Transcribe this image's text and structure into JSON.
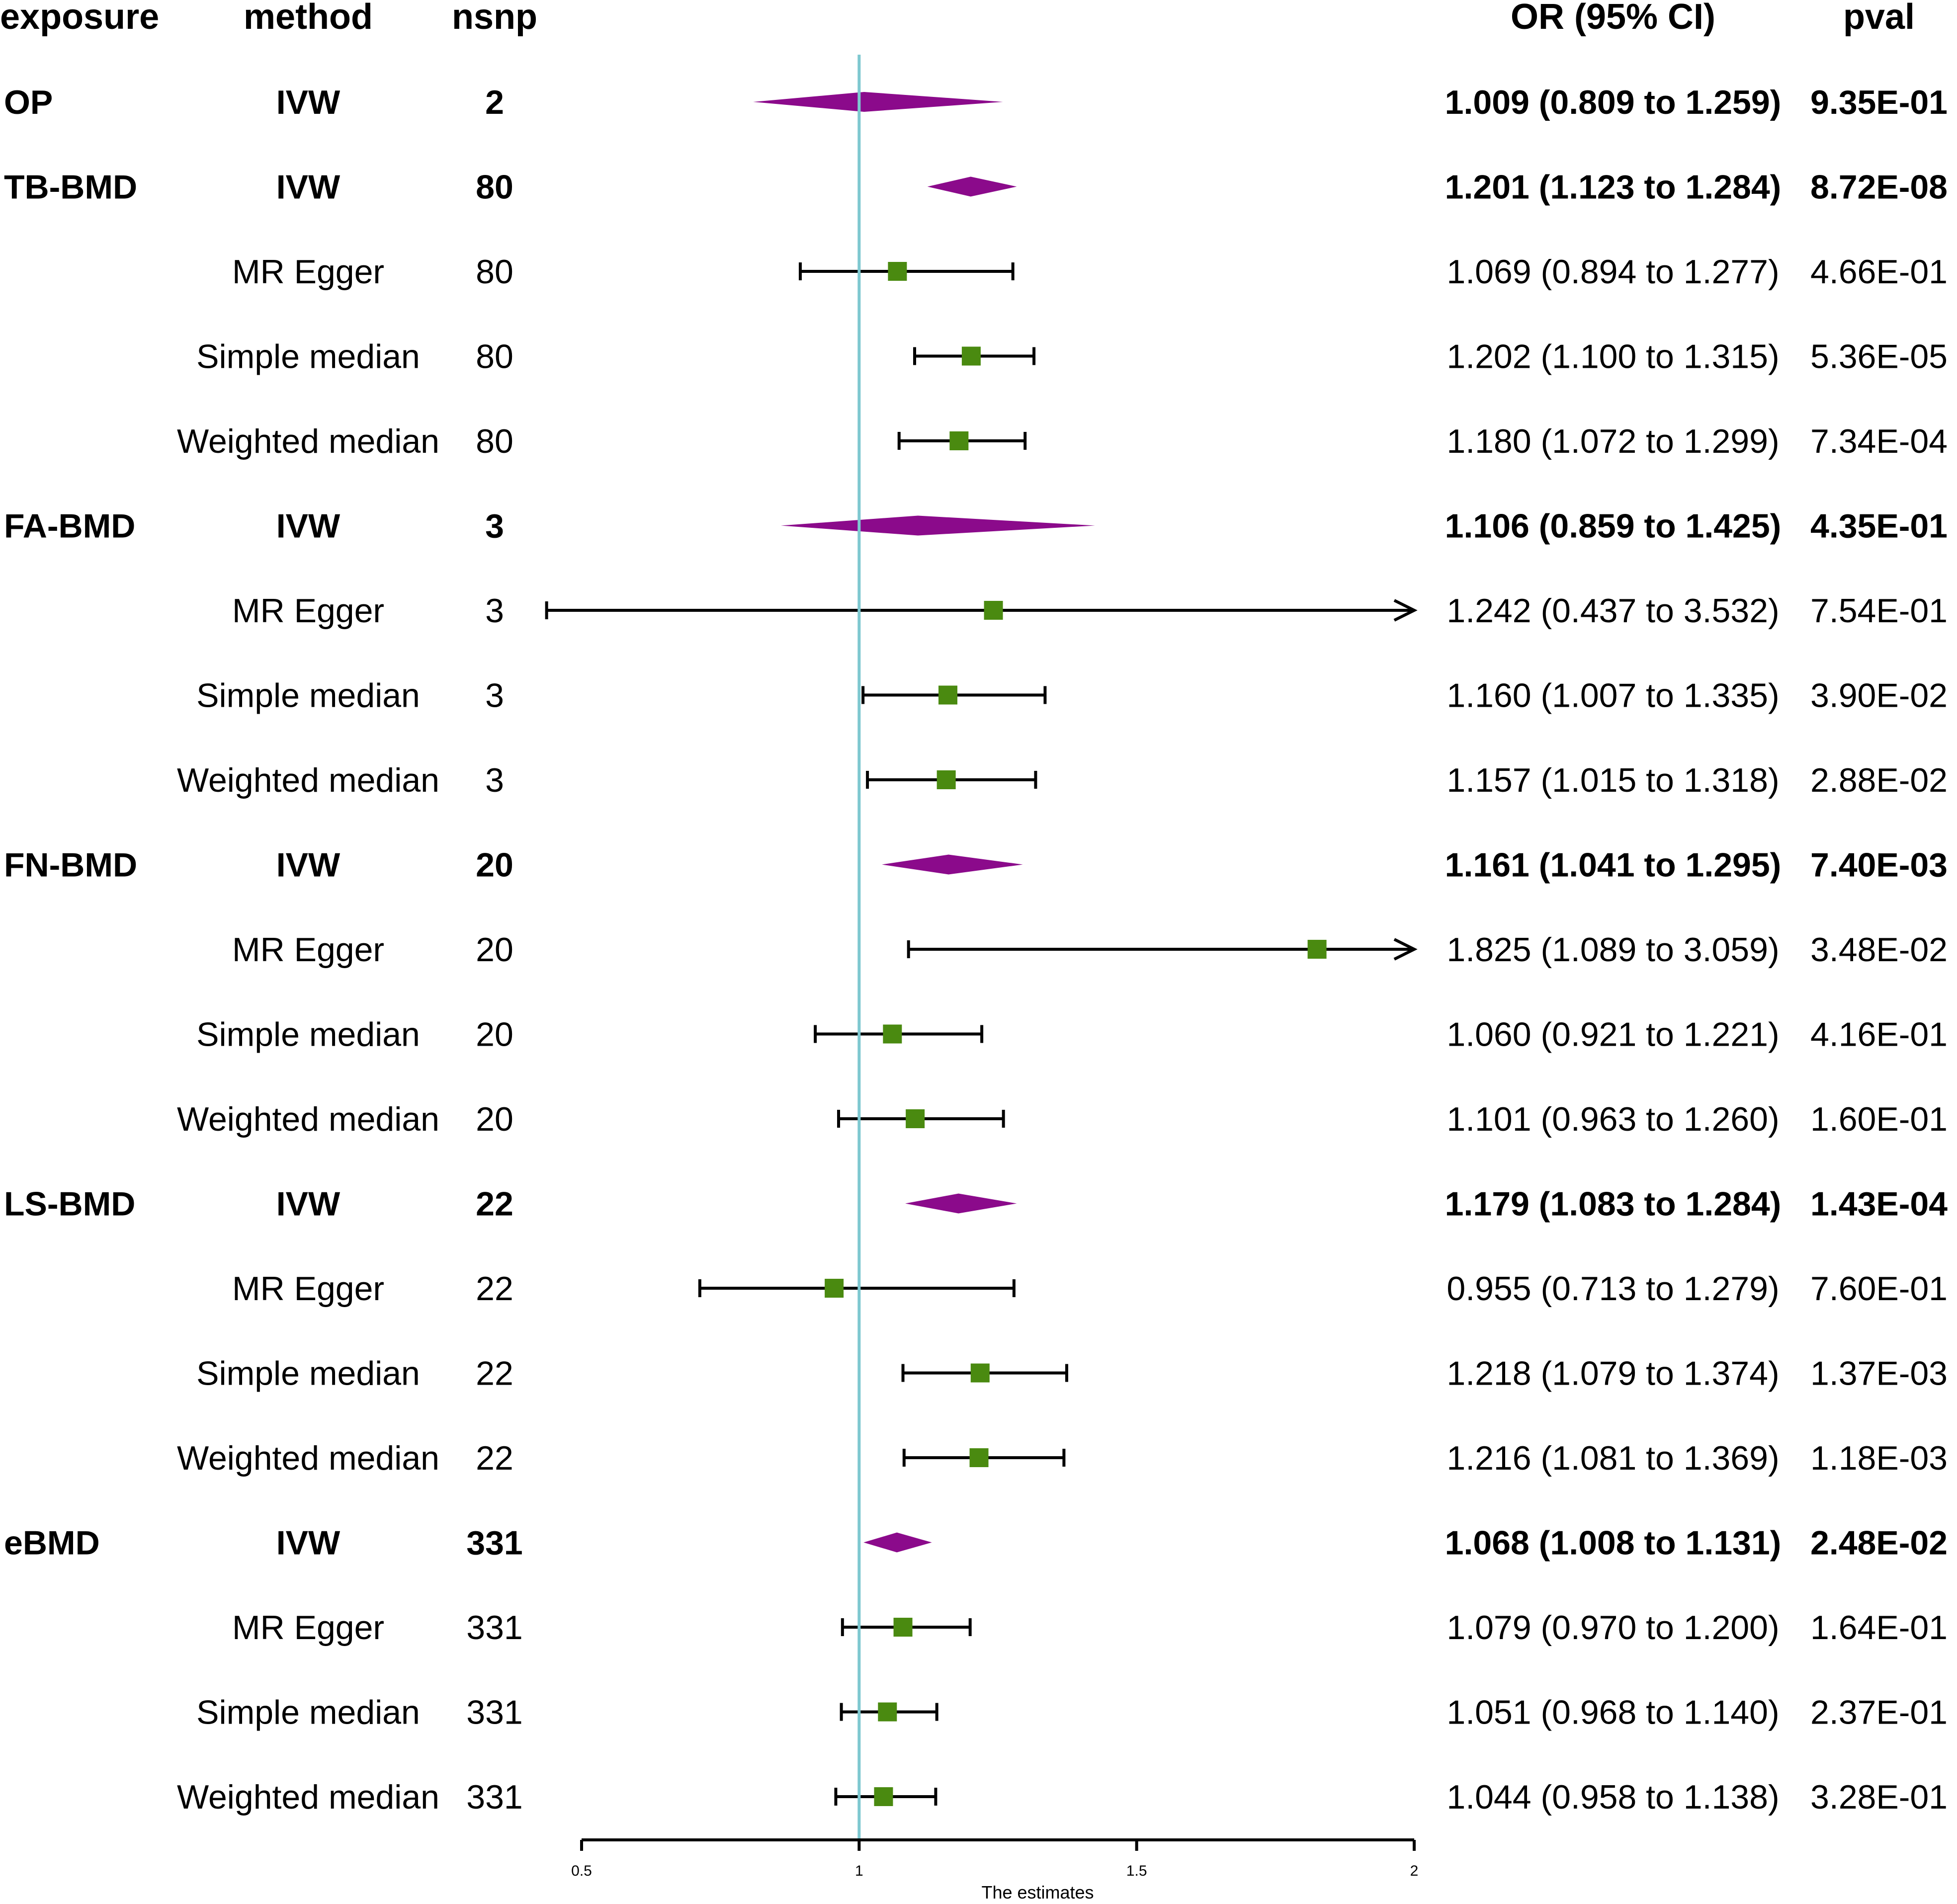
{
  "chart_data": {
    "type": "forest",
    "xlabel": "The estimates",
    "xlim": [
      0.5,
      2
    ],
    "x_ticks": [
      "0.5",
      "1",
      "1.5",
      "2"
    ],
    "reference_line": 1,
    "headers": {
      "exposure": "exposure",
      "method": "method",
      "nsnp": "nsnp",
      "or": "OR (95% CI)",
      "pval": "pval"
    },
    "rows": [
      {
        "exposure": "OP",
        "method": "IVW",
        "nsnp": "2",
        "or": 1.009,
        "lo": 0.809,
        "hi": 1.259,
        "or_text": "1.009 (0.809 to 1.259)",
        "pval": "9.35E-01",
        "summary": true
      },
      {
        "exposure": "TB-BMD",
        "method": "IVW",
        "nsnp": "80",
        "or": 1.201,
        "lo": 1.123,
        "hi": 1.284,
        "or_text": "1.201 (1.123 to 1.284)",
        "pval": "8.72E-08",
        "summary": true
      },
      {
        "exposure": "",
        "method": "MR Egger",
        "nsnp": "80",
        "or": 1.069,
        "lo": 0.894,
        "hi": 1.277,
        "or_text": "1.069 (0.894 to 1.277)",
        "pval": "4.66E-01",
        "summary": false
      },
      {
        "exposure": "",
        "method": "Simple median",
        "nsnp": "80",
        "or": 1.202,
        "lo": 1.1,
        "hi": 1.315,
        "or_text": "1.202 (1.100 to 1.315)",
        "pval": "5.36E-05",
        "summary": false
      },
      {
        "exposure": "",
        "method": "Weighted median",
        "nsnp": "80",
        "or": 1.18,
        "lo": 1.072,
        "hi": 1.299,
        "or_text": "1.180 (1.072 to 1.299)",
        "pval": "7.34E-04",
        "summary": false
      },
      {
        "exposure": "FA-BMD",
        "method": "IVW",
        "nsnp": "3",
        "or": 1.106,
        "lo": 0.859,
        "hi": 1.425,
        "or_text": "1.106 (0.859 to 1.425)",
        "pval": "4.35E-01",
        "summary": true
      },
      {
        "exposure": "",
        "method": "MR Egger",
        "nsnp": "3",
        "or": 1.242,
        "lo": 0.437,
        "hi": 3.532,
        "or_text": "1.242 (0.437 to 3.532)",
        "pval": "7.54E-01",
        "summary": false
      },
      {
        "exposure": "",
        "method": "Simple median",
        "nsnp": "3",
        "or": 1.16,
        "lo": 1.007,
        "hi": 1.335,
        "or_text": "1.160 (1.007 to 1.335)",
        "pval": "3.90E-02",
        "summary": false
      },
      {
        "exposure": "",
        "method": "Weighted median",
        "nsnp": "3",
        "or": 1.157,
        "lo": 1.015,
        "hi": 1.318,
        "or_text": "1.157 (1.015 to 1.318)",
        "pval": "2.88E-02",
        "summary": false
      },
      {
        "exposure": "FN-BMD",
        "method": "IVW",
        "nsnp": "20",
        "or": 1.161,
        "lo": 1.041,
        "hi": 1.295,
        "or_text": "1.161 (1.041 to 1.295)",
        "pval": "7.40E-03",
        "summary": true
      },
      {
        "exposure": "",
        "method": "MR Egger",
        "nsnp": "20",
        "or": 1.825,
        "lo": 1.089,
        "hi": 3.059,
        "or_text": "1.825 (1.089 to 3.059)",
        "pval": "3.48E-02",
        "summary": false
      },
      {
        "exposure": "",
        "method": "Simple median",
        "nsnp": "20",
        "or": 1.06,
        "lo": 0.921,
        "hi": 1.221,
        "or_text": "1.060 (0.921 to 1.221)",
        "pval": "4.16E-01",
        "summary": false
      },
      {
        "exposure": "",
        "method": "Weighted median",
        "nsnp": "20",
        "or": 1.101,
        "lo": 0.963,
        "hi": 1.26,
        "or_text": "1.101 (0.963 to 1.260)",
        "pval": "1.60E-01",
        "summary": false
      },
      {
        "exposure": "LS-BMD",
        "method": "IVW",
        "nsnp": "22",
        "or": 1.179,
        "lo": 1.083,
        "hi": 1.284,
        "or_text": "1.179 (1.083 to 1.284)",
        "pval": "1.43E-04",
        "summary": true
      },
      {
        "exposure": "",
        "method": "MR Egger",
        "nsnp": "22",
        "or": 0.955,
        "lo": 0.713,
        "hi": 1.279,
        "or_text": "0.955 (0.713 to 1.279)",
        "pval": "7.60E-01",
        "summary": false
      },
      {
        "exposure": "",
        "method": "Simple median",
        "nsnp": "22",
        "or": 1.218,
        "lo": 1.079,
        "hi": 1.374,
        "or_text": "1.218 (1.079 to 1.374)",
        "pval": "1.37E-03",
        "summary": false
      },
      {
        "exposure": "",
        "method": "Weighted median",
        "nsnp": "22",
        "or": 1.216,
        "lo": 1.081,
        "hi": 1.369,
        "or_text": "1.216 (1.081 to 1.369)",
        "pval": "1.18E-03",
        "summary": false
      },
      {
        "exposure": "eBMD",
        "method": "IVW",
        "nsnp": "331",
        "or": 1.068,
        "lo": 1.008,
        "hi": 1.131,
        "or_text": "1.068 (1.008 to 1.131)",
        "pval": "2.48E-02",
        "summary": true
      },
      {
        "exposure": "",
        "method": "MR Egger",
        "nsnp": "331",
        "or": 1.079,
        "lo": 0.97,
        "hi": 1.2,
        "or_text": "1.079 (0.970 to 1.200)",
        "pval": "1.64E-01",
        "summary": false
      },
      {
        "exposure": "",
        "method": "Simple median",
        "nsnp": "331",
        "or": 1.051,
        "lo": 0.968,
        "hi": 1.14,
        "or_text": "1.051 (0.968 to 1.140)",
        "pval": "2.37E-01",
        "summary": false
      },
      {
        "exposure": "",
        "method": "Weighted median",
        "nsnp": "331",
        "or": 1.044,
        "lo": 0.958,
        "hi": 1.138,
        "or_text": "1.044 (0.958 to 1.138)",
        "pval": "3.28E-01",
        "summary": false
      }
    ],
    "colors": {
      "summary_diamond": "#8b0a8b",
      "point_square": "#4a8a10",
      "ci_line": "#000000",
      "reference_line": "#7ec8d0"
    }
  }
}
